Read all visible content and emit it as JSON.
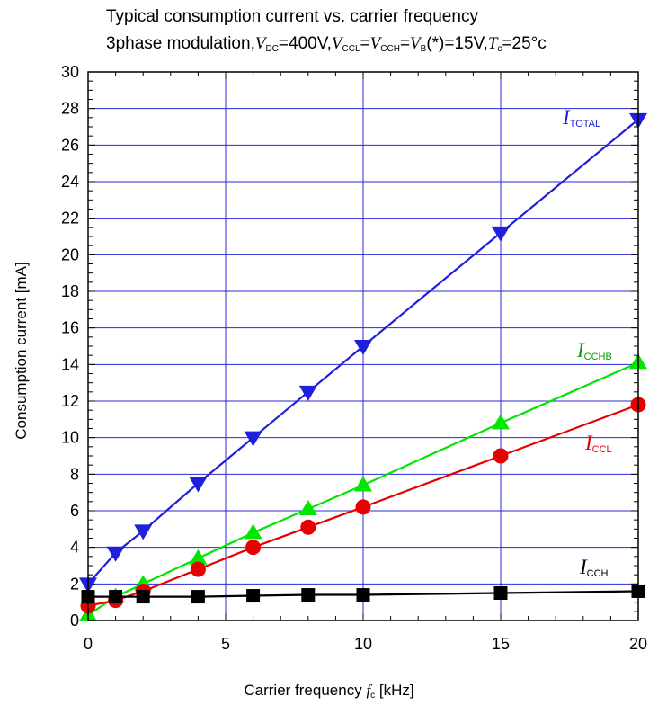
{
  "chart_data": {
    "type": "line",
    "title_line1": "Typical consumption current vs. carrier frequency",
    "title_line2": {
      "prefix": "3phase modulation,",
      "v1": "V",
      "v1_sub": "DC",
      "v1_val": "=400V,",
      "v2": "V",
      "v2_sub": "CCL",
      "eq1": "=",
      "v3": "V",
      "v3_sub": "CCH",
      "eq2": "=",
      "v4": "V",
      "v4_sub": "B",
      "v4_val": "(*)=15V,",
      "t": "T",
      "t_sub": "c",
      "t_val": "=25°c"
    },
    "xlabel": {
      "text": "Carrier frequency ",
      "var": "f",
      "sub": "c",
      "unit": " [kHz]"
    },
    "ylabel": "Consumption current [mA]",
    "xlim": [
      0,
      20
    ],
    "ylim": [
      0,
      30
    ],
    "xticks": [
      0,
      5,
      10,
      15,
      20
    ],
    "yticks": [
      0,
      2,
      4,
      6,
      8,
      10,
      12,
      14,
      16,
      18,
      20,
      22,
      24,
      26,
      28,
      30
    ],
    "grid": true,
    "series": [
      {
        "name": "I",
        "name_sub": "TOTAL",
        "color": "#1f1fdc",
        "marker": "triangle-down",
        "x": [
          0,
          1,
          2,
          4,
          6,
          8,
          10,
          15,
          20
        ],
        "y": [
          2.0,
          3.7,
          4.9,
          7.5,
          10.0,
          12.5,
          15.0,
          21.2,
          27.4
        ]
      },
      {
        "name": "I",
        "name_sub": "CCHB",
        "color": "#00e600",
        "marker": "triangle-up",
        "x": [
          0,
          1,
          2,
          4,
          6,
          8,
          10,
          15,
          20
        ],
        "y": [
          0.3,
          1.3,
          2.0,
          3.4,
          4.8,
          6.1,
          7.4,
          10.8,
          14.1
        ]
      },
      {
        "name": "I",
        "name_sub": "CCL",
        "color": "#e60000",
        "marker": "circle",
        "x": [
          0,
          1,
          2,
          4,
          6,
          8,
          10,
          15,
          20
        ],
        "y": [
          0.8,
          1.1,
          1.6,
          2.8,
          4.0,
          5.1,
          6.2,
          9.0,
          11.8
        ]
      },
      {
        "name": "I",
        "name_sub": "CCH",
        "color": "#000000",
        "marker": "square",
        "x": [
          0,
          1,
          2,
          4,
          6,
          8,
          10,
          15,
          20
        ],
        "y": [
          1.3,
          1.3,
          1.3,
          1.3,
          1.35,
          1.4,
          1.4,
          1.5,
          1.6
        ]
      }
    ]
  }
}
